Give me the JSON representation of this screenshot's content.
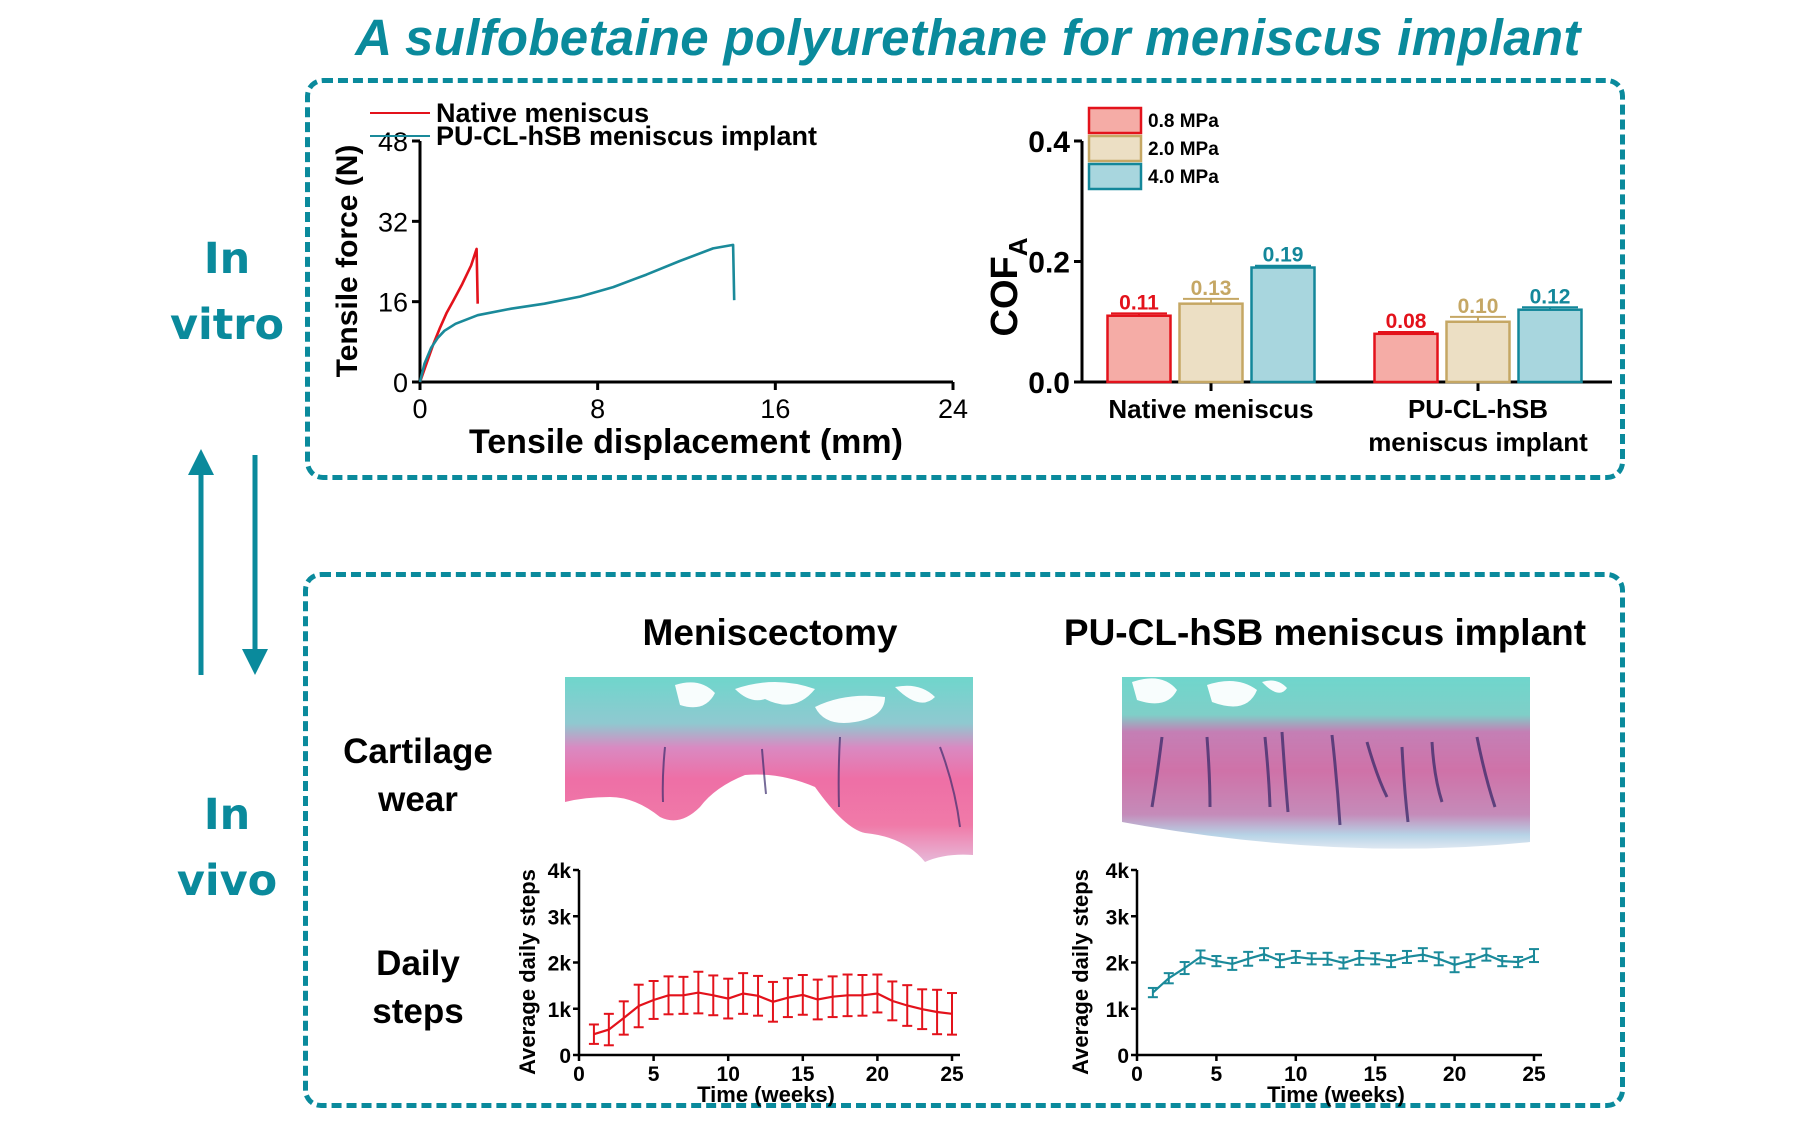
{
  "title": "A sulfobetaine polyurethane for meniscus implant",
  "colors": {
    "accent": "#0a8a9c",
    "native_red": "#e3121b",
    "implant_teal": "#1a8a9a",
    "bar_08_fill": "#f5aca6",
    "bar_08_stroke": "#e3121b",
    "bar_20_fill": "#ecdfc4",
    "bar_20_stroke": "#c5a764",
    "bar_40_fill": "#a8d6de",
    "bar_40_stroke": "#13879a"
  },
  "side_labels": {
    "in_vitro": [
      "In",
      "vitro"
    ],
    "in_vivo": [
      "In",
      "vivo"
    ]
  },
  "arrows": {
    "up": "arrow-up-icon",
    "down": "arrow-down-icon"
  },
  "in_vivo_panel": {
    "headings": [
      "Meniscectomy",
      "PU-CL-hSB meniscus implant"
    ],
    "row_labels": {
      "cartilage": [
        "Cartilage",
        "wear"
      ],
      "steps": [
        "Daily",
        "steps"
      ]
    },
    "images": [
      {
        "name": "meniscectomy-histology",
        "description": "Safranin-O/fast green stained cartilage section showing severe wear"
      },
      {
        "name": "implant-histology",
        "description": "Safranin-O/fast green stained cartilage section with preserved surface"
      }
    ]
  },
  "chart_data": [
    {
      "type": "line",
      "id": "tensile",
      "title": "",
      "xlabel": "Tensile displacement (mm)",
      "ylabel": "Tensile force (N)",
      "xlim": [
        0,
        24
      ],
      "ylim": [
        0,
        48
      ],
      "xticks": [
        0,
        8,
        16,
        24
      ],
      "yticks": [
        0,
        16,
        32,
        48
      ],
      "grid": false,
      "legend": "top-left",
      "series": [
        {
          "name": "Native meniscus",
          "color": "#e3121b",
          "points": [
            [
              0,
              0
            ],
            [
              0.3,
              3.8
            ],
            [
              0.6,
              7.5
            ],
            [
              0.9,
              10.8
            ],
            [
              1.2,
              13.8
            ],
            [
              1.5,
              16.2
            ],
            [
              1.9,
              19.5
            ],
            [
              2.3,
              23.2
            ],
            [
              2.55,
              26.5
            ],
            [
              2.6,
              15.6
            ]
          ]
        },
        {
          "name": "PU-CL-hSB meniscus implant",
          "color": "#1a8a9a",
          "points": [
            [
              0,
              0
            ],
            [
              0.2,
              3.6
            ],
            [
              0.5,
              6.8
            ],
            [
              0.8,
              8.8
            ],
            [
              1.1,
              10.2
            ],
            [
              1.6,
              11.6
            ],
            [
              2.6,
              13.3
            ],
            [
              4.1,
              14.6
            ],
            [
              5.6,
              15.6
            ],
            [
              7.2,
              17.0
            ],
            [
              8.7,
              18.9
            ],
            [
              10.2,
              21.4
            ],
            [
              11.7,
              24.1
            ],
            [
              13.2,
              26.6
            ],
            [
              14.1,
              27.3
            ],
            [
              14.15,
              16.3
            ]
          ]
        }
      ]
    },
    {
      "type": "bar",
      "id": "cof",
      "title": "",
      "xlabel": "",
      "ylabel": "COF",
      "ylabel_subscript": "A",
      "ylim": [
        0,
        0.4
      ],
      "yticks": [
        "0.0",
        "0.2",
        "0.4"
      ],
      "categories": [
        [
          "Native meniscus"
        ],
        [
          "PU-CL-hSB",
          "meniscus implant"
        ]
      ],
      "legend": "top-left",
      "series": [
        {
          "name": "0.8 MPa",
          "values": [
            0.11,
            0.08
          ],
          "errors": [
            0.004,
            0.003
          ],
          "labels": [
            "0.11",
            "0.08"
          ]
        },
        {
          "name": "2.0 MPa",
          "values": [
            0.13,
            0.1
          ],
          "errors": [
            0.008,
            0.008
          ],
          "labels": [
            "0.13",
            "0.10"
          ]
        },
        {
          "name": "4.0 MPa",
          "values": [
            0.19,
            0.12
          ],
          "errors": [
            0.003,
            0.004
          ],
          "labels": [
            "0.19",
            "0.12"
          ]
        }
      ]
    },
    {
      "type": "line",
      "id": "steps-meniscectomy",
      "xlabel": "Time (weeks)",
      "ylabel": "Average daily steps",
      "xlim": [
        0,
        25
      ],
      "ylim": [
        0,
        4000
      ],
      "xticks": [
        "0",
        "5",
        "10",
        "15",
        "20",
        "25"
      ],
      "yticks": [
        "0",
        "1k",
        "2k",
        "3k",
        "4k"
      ],
      "series": [
        {
          "name": "Meniscectomy",
          "color": "#e3121b",
          "x": [
            1,
            2,
            3,
            4,
            5,
            6,
            7,
            8,
            9,
            10,
            11,
            12,
            13,
            14,
            15,
            16,
            17,
            18,
            19,
            20,
            21,
            22,
            23,
            24,
            25
          ],
          "values": [
            450,
            550,
            800,
            1060,
            1190,
            1290,
            1290,
            1350,
            1290,
            1220,
            1330,
            1280,
            1150,
            1240,
            1300,
            1200,
            1260,
            1290,
            1290,
            1330,
            1170,
            1070,
            990,
            930,
            890
          ],
          "errors": [
            210,
            340,
            360,
            460,
            410,
            410,
            400,
            450,
            430,
            430,
            440,
            430,
            430,
            420,
            430,
            430,
            440,
            450,
            440,
            410,
            420,
            440,
            430,
            480,
            450
          ]
        }
      ]
    },
    {
      "type": "line",
      "id": "steps-implant",
      "xlabel": "Time (weeks)",
      "ylabel": "Average daily steps",
      "xlim": [
        0,
        25
      ],
      "ylim": [
        0,
        4000
      ],
      "xticks": [
        "0",
        "5",
        "10",
        "15",
        "20",
        "25"
      ],
      "yticks": [
        "0",
        "1k",
        "2k",
        "3k",
        "4k"
      ],
      "series": [
        {
          "name": "PU-CL-hSB meniscus implant",
          "color": "#1a8a9a",
          "x": [
            1,
            2,
            3,
            4,
            5,
            6,
            7,
            8,
            9,
            10,
            11,
            12,
            13,
            14,
            15,
            16,
            17,
            18,
            19,
            20,
            21,
            22,
            23,
            24,
            25
          ],
          "values": [
            1350,
            1660,
            1880,
            2120,
            2030,
            1970,
            2080,
            2180,
            2040,
            2120,
            2080,
            2080,
            1990,
            2100,
            2080,
            2030,
            2120,
            2170,
            2080,
            1950,
            2040,
            2170,
            2030,
            2010,
            2150
          ],
          "errors": [
            100,
            110,
            130,
            140,
            110,
            130,
            150,
            130,
            140,
            130,
            120,
            130,
            120,
            150,
            120,
            130,
            130,
            140,
            140,
            160,
            140,
            130,
            110,
            110,
            140
          ]
        }
      ]
    }
  ]
}
